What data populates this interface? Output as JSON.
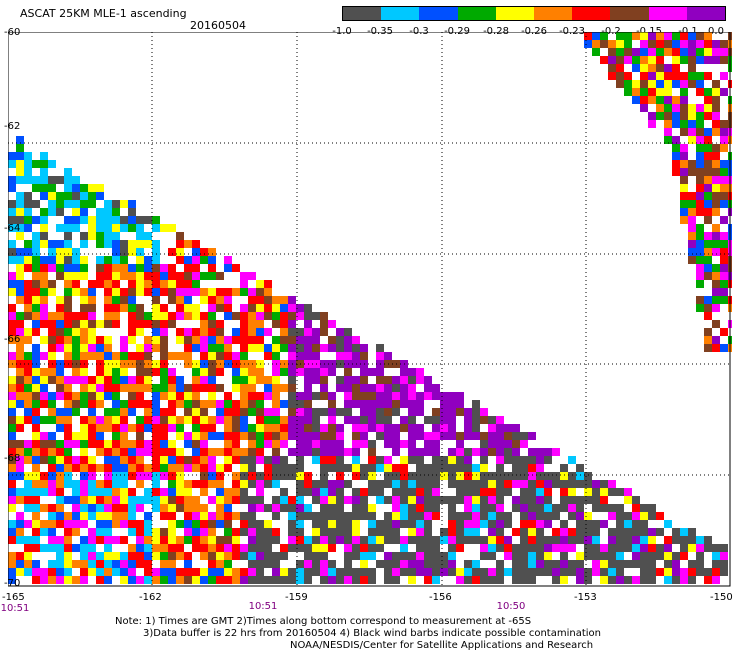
{
  "header": {
    "title": "ASCAT 25KM MLE-1 ascending",
    "date": "20160504"
  },
  "colorbar": {
    "colors": [
      "#505050",
      "#00c8ff",
      "#0050ff",
      "#00aa00",
      "#ffff00",
      "#ff8000",
      "#ff0000",
      "#804020",
      "#ff00ff",
      "#9000c0"
    ],
    "labels": [
      "-1.0",
      "-0.35",
      "-0.3",
      "-0.29",
      "-0.28",
      "-0.26",
      "-0.23",
      "-0.2",
      "-0.15",
      "-0.1",
      "0.0"
    ]
  },
  "map": {
    "lon_range": [
      -165,
      -150
    ],
    "lat_range": [
      -70,
      -60
    ],
    "y_ticks": [
      "-60",
      "-62",
      "-64",
      "-66",
      "-68",
      "-70"
    ],
    "x_ticks": [
      "-165",
      "-162",
      "-159",
      "-156",
      "-153",
      "-150"
    ],
    "times": [
      "10:51",
      "10:51",
      "10:50"
    ]
  },
  "notes": {
    "line1": "Note: 1) Times are GMT 2)Times along bottom correspond to measurement at -65S",
    "line2": "3)Data buffer is 22 hrs from 20160504 4) Black wind barbs indicate possible contamination",
    "line3": "NOAA/NESDIS/Center for Satellite Applications and Research"
  }
}
